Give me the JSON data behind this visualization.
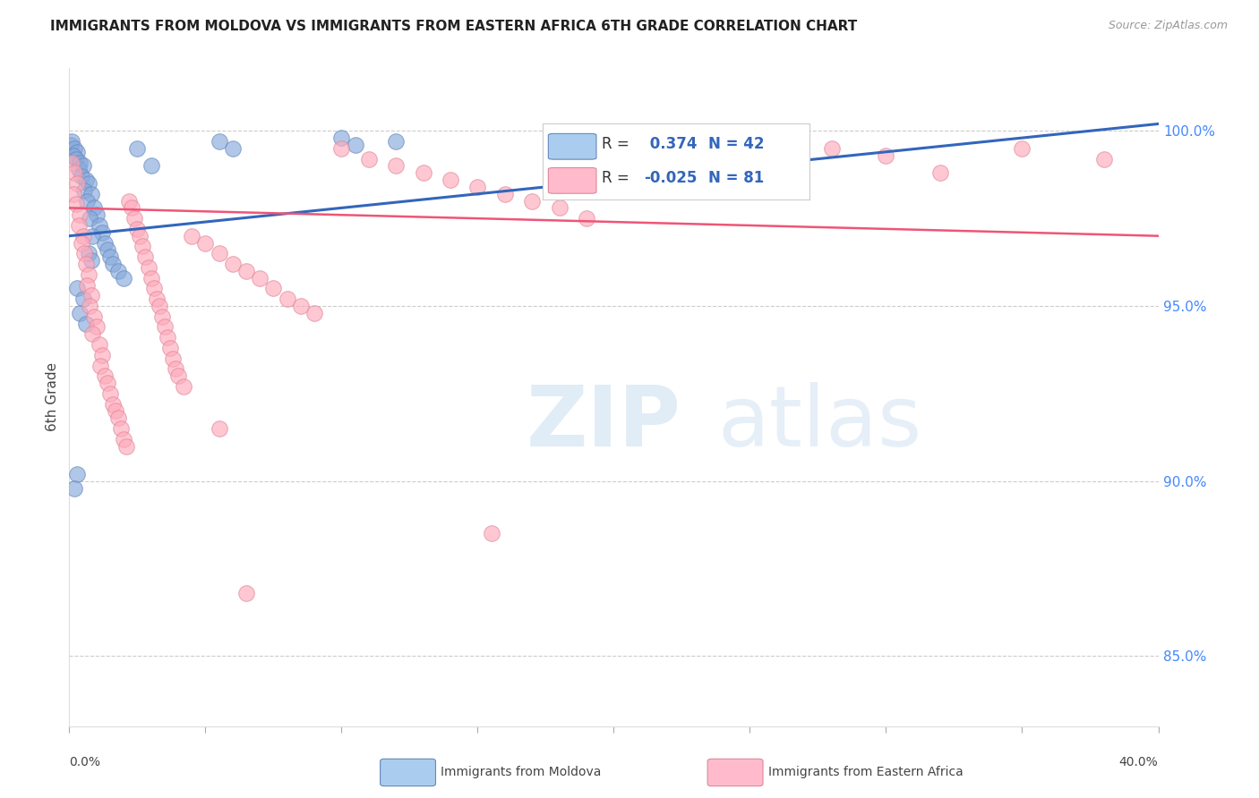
{
  "title": "IMMIGRANTS FROM MOLDOVA VS IMMIGRANTS FROM EASTERN AFRICA 6TH GRADE CORRELATION CHART",
  "source": "Source: ZipAtlas.com",
  "ylabel": "6th Grade",
  "right_yticks": [
    85.0,
    90.0,
    95.0,
    100.0
  ],
  "xmin": 0.0,
  "xmax": 40.0,
  "ymin": 83.0,
  "ymax": 101.8,
  "moldova_R": 0.374,
  "moldova_N": 42,
  "eastern_africa_R": -0.025,
  "eastern_africa_N": 81,
  "moldova_color": "#88aadd",
  "moldova_color_edge": "#6688bb",
  "eastern_africa_color": "#ffaabb",
  "eastern_africa_color_edge": "#dd8899",
  "moldova_line_color": "#3366bb",
  "eastern_africa_line_color": "#ee5577",
  "watermark_zip": "ZIP",
  "watermark_atlas": "atlas",
  "legend_box_facecolor": "#ffffff",
  "moldova_legend_color": "#aaccee",
  "eastern_africa_legend_color": "#ffbbcc",
  "moldova_scatter": [
    [
      0.05,
      99.6
    ],
    [
      0.1,
      99.7
    ],
    [
      0.2,
      99.5
    ],
    [
      0.3,
      99.4
    ],
    [
      0.15,
      99.3
    ],
    [
      0.25,
      99.2
    ],
    [
      0.4,
      99.1
    ],
    [
      0.35,
      98.9
    ],
    [
      0.5,
      99.0
    ],
    [
      0.45,
      98.7
    ],
    [
      0.6,
      98.6
    ],
    [
      0.7,
      98.5
    ],
    [
      0.55,
      98.3
    ],
    [
      0.8,
      98.2
    ],
    [
      0.65,
      98.0
    ],
    [
      0.9,
      97.8
    ],
    [
      1.0,
      97.6
    ],
    [
      0.75,
      97.5
    ],
    [
      1.1,
      97.3
    ],
    [
      1.2,
      97.1
    ],
    [
      0.85,
      97.0
    ],
    [
      1.3,
      96.8
    ],
    [
      1.4,
      96.6
    ],
    [
      1.5,
      96.4
    ],
    [
      1.6,
      96.2
    ],
    [
      1.8,
      96.0
    ],
    [
      2.0,
      95.8
    ],
    [
      0.3,
      95.5
    ],
    [
      0.5,
      95.2
    ],
    [
      0.4,
      94.8
    ],
    [
      0.6,
      94.5
    ],
    [
      0.7,
      96.5
    ],
    [
      0.8,
      96.3
    ],
    [
      2.5,
      99.5
    ],
    [
      5.5,
      99.7
    ],
    [
      6.0,
      99.5
    ],
    [
      10.0,
      99.8
    ],
    [
      10.5,
      99.6
    ],
    [
      12.0,
      99.7
    ],
    [
      0.3,
      90.2
    ],
    [
      0.2,
      89.8
    ],
    [
      3.0,
      99.0
    ]
  ],
  "eastern_africa_scatter": [
    [
      0.1,
      99.1
    ],
    [
      0.2,
      98.8
    ],
    [
      0.3,
      98.5
    ],
    [
      0.15,
      98.2
    ],
    [
      0.25,
      97.9
    ],
    [
      0.4,
      97.6
    ],
    [
      0.35,
      97.3
    ],
    [
      0.5,
      97.0
    ],
    [
      0.45,
      96.8
    ],
    [
      0.55,
      96.5
    ],
    [
      0.6,
      96.2
    ],
    [
      0.7,
      95.9
    ],
    [
      0.65,
      95.6
    ],
    [
      0.8,
      95.3
    ],
    [
      0.75,
      95.0
    ],
    [
      0.9,
      94.7
    ],
    [
      1.0,
      94.4
    ],
    [
      0.85,
      94.2
    ],
    [
      1.1,
      93.9
    ],
    [
      1.2,
      93.6
    ],
    [
      1.15,
      93.3
    ],
    [
      1.3,
      93.0
    ],
    [
      1.4,
      92.8
    ],
    [
      1.5,
      92.5
    ],
    [
      1.6,
      92.2
    ],
    [
      1.7,
      92.0
    ],
    [
      1.8,
      91.8
    ],
    [
      1.9,
      91.5
    ],
    [
      2.0,
      91.2
    ],
    [
      2.1,
      91.0
    ],
    [
      2.2,
      98.0
    ],
    [
      2.3,
      97.8
    ],
    [
      2.4,
      97.5
    ],
    [
      2.5,
      97.2
    ],
    [
      2.6,
      97.0
    ],
    [
      2.7,
      96.7
    ],
    [
      2.8,
      96.4
    ],
    [
      2.9,
      96.1
    ],
    [
      3.0,
      95.8
    ],
    [
      3.1,
      95.5
    ],
    [
      3.2,
      95.2
    ],
    [
      3.3,
      95.0
    ],
    [
      3.4,
      94.7
    ],
    [
      3.5,
      94.4
    ],
    [
      3.6,
      94.1
    ],
    [
      3.7,
      93.8
    ],
    [
      3.8,
      93.5
    ],
    [
      3.9,
      93.2
    ],
    [
      4.0,
      93.0
    ],
    [
      4.2,
      92.7
    ],
    [
      4.5,
      97.0
    ],
    [
      5.0,
      96.8
    ],
    [
      5.5,
      96.5
    ],
    [
      6.0,
      96.2
    ],
    [
      6.5,
      96.0
    ],
    [
      7.0,
      95.8
    ],
    [
      7.5,
      95.5
    ],
    [
      8.0,
      95.2
    ],
    [
      8.5,
      95.0
    ],
    [
      9.0,
      94.8
    ],
    [
      10.0,
      99.5
    ],
    [
      11.0,
      99.2
    ],
    [
      12.0,
      99.0
    ],
    [
      13.0,
      98.8
    ],
    [
      14.0,
      98.6
    ],
    [
      15.0,
      98.4
    ],
    [
      16.0,
      98.2
    ],
    [
      17.0,
      98.0
    ],
    [
      18.0,
      97.8
    ],
    [
      19.0,
      97.5
    ],
    [
      20.0,
      99.4
    ],
    [
      22.0,
      99.2
    ],
    [
      25.0,
      99.0
    ],
    [
      28.0,
      99.5
    ],
    [
      30.0,
      99.3
    ],
    [
      32.0,
      98.8
    ],
    [
      35.0,
      99.5
    ],
    [
      38.0,
      99.2
    ],
    [
      5.5,
      91.5
    ],
    [
      6.5,
      86.8
    ],
    [
      15.5,
      88.5
    ]
  ],
  "moldova_trendline": [
    0.0,
    97.0,
    40.0,
    100.2
  ],
  "eastern_africa_trendline": [
    0.0,
    97.8,
    40.0,
    97.0
  ]
}
